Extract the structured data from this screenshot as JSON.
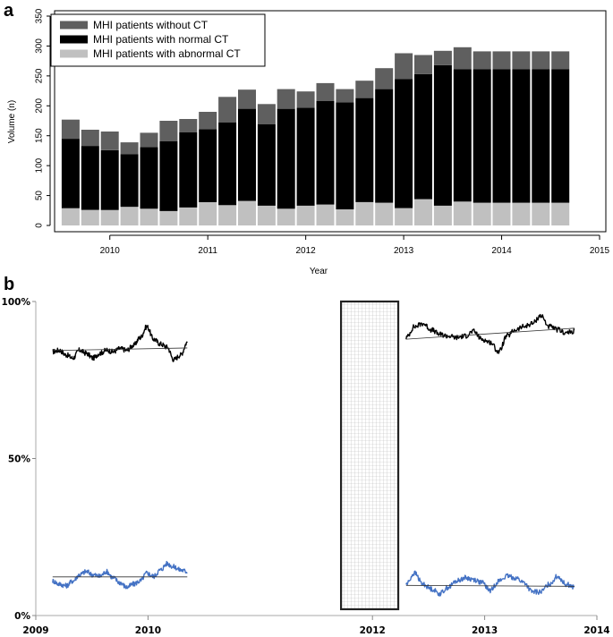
{
  "chart_data": [
    {
      "panel_label": "a",
      "type": "bar",
      "stacked": true,
      "xlabel": "Year",
      "ylabel": "Volume (n)",
      "ylim": [
        0,
        350
      ],
      "yticks": [
        0,
        50,
        100,
        150,
        200,
        250,
        300,
        350
      ],
      "xlim": [
        2009.5,
        2015
      ],
      "xticks": [
        2010,
        2011,
        2012,
        2013,
        2014,
        2015
      ],
      "grid": false,
      "legend_position": "top-left",
      "categories": [
        2009.6,
        2009.8,
        2010.0,
        2010.2,
        2010.4,
        2010.6,
        2010.8,
        2011.0,
        2011.2,
        2011.4,
        2011.6,
        2011.8,
        2012.0,
        2012.2,
        2012.4,
        2012.6,
        2012.8,
        2013.0,
        2013.2,
        2013.4,
        2013.6,
        2013.8,
        2014.0,
        2014.2,
        2014.4,
        2014.6
      ],
      "series": [
        {
          "name": "MHI patients with abnormal CT",
          "color": "#c0c0c0",
          "values": [
            29,
            26,
            26,
            31,
            28,
            24,
            30,
            39,
            34,
            41,
            33,
            28,
            33,
            35,
            27,
            39,
            38,
            29,
            44,
            33,
            40,
            38,
            38,
            38,
            38,
            38
          ]
        },
        {
          "name": "MHI patients with normal CT",
          "color": "#000000",
          "values": [
            116,
            107,
            100,
            88,
            103,
            117,
            126,
            122,
            138,
            154,
            136,
            167,
            164,
            173,
            179,
            174,
            190,
            216,
            209,
            235,
            221,
            223,
            223,
            223,
            223,
            223
          ]
        },
        {
          "name": "MHI patients without CT",
          "color": "#5f5f5f",
          "values": [
            32,
            27,
            31,
            20,
            24,
            34,
            22,
            29,
            43,
            32,
            34,
            33,
            27,
            30,
            22,
            29,
            35,
            43,
            32,
            24,
            37,
            30,
            30,
            30,
            30,
            30
          ]
        }
      ]
    },
    {
      "panel_label": "b",
      "type": "line",
      "xlim": [
        2009,
        2014
      ],
      "xticks": [
        2009,
        2010,
        2012,
        2013,
        2014
      ],
      "ylim": [
        0,
        100
      ],
      "yticks": [
        {
          "value": 0,
          "label": "0%"
        },
        {
          "value": 50,
          "label": "50%"
        },
        {
          "value": 100,
          "label": "100%"
        }
      ],
      "gap_region": {
        "x": [
          2011.72,
          2012.23
        ],
        "y": [
          2,
          100
        ],
        "pattern": "grid"
      },
      "series": [
        {
          "color": "#000000",
          "segments": [
            {
              "x0": 2009.15,
              "x1": 2010.35,
              "trend": [
                84.4,
                85.2
              ],
              "anchors": [
                84.0,
                84.5,
                83.0,
                82.0,
                84.5,
                83.5,
                82.0,
                83.5,
                84.5,
                84.0,
                85.0,
                84.5,
                86.0,
                88.5,
                92.0,
                88.0,
                86.5,
                85.5,
                81.5,
                83.0,
                87.0
              ]
            },
            {
              "x0": 2012.3,
              "x1": 2013.8,
              "trend": [
                88.0,
                91.5
              ],
              "anchors": [
                88.5,
                92.0,
                93.0,
                91.0,
                89.5,
                89.0,
                88.5,
                89.0,
                90.5,
                88.0,
                87.0,
                84.0,
                89.0,
                91.0,
                92.0,
                93.0,
                95.5,
                92.0,
                91.0,
                90.0,
                90.5
              ]
            }
          ]
        },
        {
          "color": "#4472c4",
          "segments": [
            {
              "x0": 2009.15,
              "x1": 2010.35,
              "trend": [
                12.3,
                12.3
              ],
              "anchors": [
                11.0,
                10.0,
                9.5,
                11.0,
                13.0,
                14.0,
                13.0,
                12.5,
                14.0,
                12.0,
                10.5,
                9.0,
                10.0,
                11.0,
                13.5,
                12.5,
                14.5,
                16.5,
                15.5,
                14.5,
                14.0
              ]
            },
            {
              "x0": 2012.3,
              "x1": 2013.8,
              "trend": [
                9.6,
                9.3
              ],
              "anchors": [
                10.0,
                13.5,
                10.0,
                8.5,
                7.0,
                9.0,
                11.0,
                12.0,
                11.5,
                10.5,
                8.0,
                11.0,
                12.5,
                12.0,
                10.5,
                7.5,
                7.5,
                10.0,
                12.5,
                10.0,
                9.0
              ]
            }
          ]
        }
      ]
    }
  ]
}
